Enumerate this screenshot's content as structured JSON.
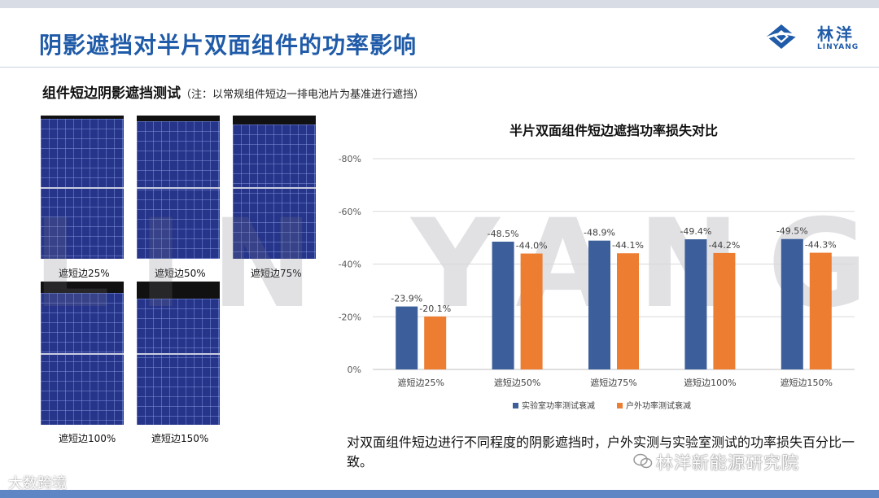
{
  "slide": {
    "title": "阴影遮挡对半片双面组件的功率影响",
    "subtitle": "组件短边阴影遮挡测试",
    "subtitle_note": "（注：以常规组件短边一排电池片为基准进行遮挡）",
    "conclusion": "对双面组件短边进行不同程度的阴影遮挡时，户外实测与实验室测试的功率损失百分比一致。",
    "watermark": "LIN YANG",
    "wechat_mark": "林洋新能源研究院",
    "bottom_mark": "大数跨境"
  },
  "logo": {
    "name_cn": "林洋",
    "name_en": "LINYANG"
  },
  "panels": [
    {
      "label": "遮短边25%",
      "shade": 0.25
    },
    {
      "label": "遮短边50%",
      "shade": 0.5
    },
    {
      "label": "遮短边75%",
      "shade": 0.75
    },
    {
      "label": "遮短边100%",
      "shade": 1.0
    },
    {
      "label": "遮短边150%",
      "shade": 1.5
    }
  ],
  "chart_data": {
    "type": "bar",
    "title": "半片双面组件短边遮挡功率损失对比",
    "categories": [
      "遮短边25%",
      "遮短边50%",
      "遮短边75%",
      "遮短边100%",
      "遮短边150%"
    ],
    "series": [
      {
        "name": "实验室功率测试衰减",
        "values": [
          -23.9,
          -48.5,
          -48.9,
          -49.4,
          -49.5
        ],
        "labels": [
          "-23.9%",
          "-48.5%",
          "-48.9%",
          "-49.4%",
          "-49.5%"
        ],
        "color": "#3c5f9b"
      },
      {
        "name": "户外功率测试衰减",
        "values": [
          -20.1,
          -44.0,
          -44.1,
          -44.2,
          -44.3
        ],
        "labels": [
          "-20.1%",
          "-44.0%",
          "-44.1%",
          "-44.2%",
          "-44.3%"
        ],
        "color": "#ed7d31"
      }
    ],
    "ylim": [
      -80,
      0
    ],
    "yticks": [
      0,
      -20,
      -40,
      -60,
      -80
    ],
    "ytick_labels": [
      "0%",
      "-20%",
      "-40%",
      "-60%",
      "-80%"
    ],
    "y_inverted": true,
    "grid": true,
    "legend_position": "bottom"
  }
}
